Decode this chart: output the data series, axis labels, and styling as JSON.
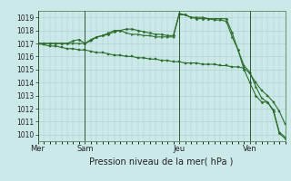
{
  "title": "Pression niveau de la mer( hPa )",
  "bg_color": "#cce9e9",
  "grid_color": "#aacccc",
  "line_color": "#2d6e2d",
  "ylim": [
    1009.5,
    1019.5
  ],
  "yticks": [
    1010,
    1011,
    1012,
    1013,
    1014,
    1015,
    1016,
    1017,
    1018,
    1019
  ],
  "day_labels": [
    "Mer",
    "Sam",
    "Jeu",
    "Ven"
  ],
  "day_positions": [
    0,
    8,
    24,
    36
  ],
  "xlim_max": 42,
  "series1_x": [
    0,
    1,
    2,
    3,
    4,
    5,
    6,
    7,
    8,
    9,
    10,
    11,
    12,
    13,
    14,
    15,
    16,
    17,
    18,
    19,
    20,
    21,
    22,
    23,
    24,
    25,
    26,
    27,
    28,
    29,
    30,
    31,
    32,
    33,
    34,
    35,
    36,
    37,
    38,
    39,
    40,
    41,
    42
  ],
  "series1_y": [
    1017.0,
    1017.0,
    1017.0,
    1017.0,
    1017.0,
    1017.0,
    1017.2,
    1017.3,
    1017.0,
    1017.3,
    1017.5,
    1017.6,
    1017.7,
    1017.9,
    1018.0,
    1018.1,
    1018.1,
    1018.0,
    1017.9,
    1017.8,
    1017.7,
    1017.7,
    1017.6,
    1017.6,
    1019.3,
    1019.2,
    1019.0,
    1018.9,
    1018.9,
    1018.9,
    1018.9,
    1018.9,
    1018.9,
    1017.8,
    1016.5,
    1015.0,
    1014.0,
    1013.0,
    1012.5,
    1012.5,
    1011.8,
    1010.1,
    1009.7
  ],
  "series2_x": [
    0,
    1,
    2,
    3,
    4,
    5,
    6,
    7,
    8,
    9,
    10,
    11,
    12,
    13,
    14,
    15,
    16,
    17,
    18,
    19,
    20,
    21,
    22,
    23,
    24,
    25,
    26,
    27,
    28,
    29,
    30,
    31,
    32,
    33,
    34,
    35,
    36,
    37,
    38,
    39,
    40,
    41,
    42
  ],
  "series2_y": [
    1017.0,
    1017.0,
    1017.0,
    1017.0,
    1017.0,
    1017.0,
    1017.0,
    1017.0,
    1017.0,
    1017.2,
    1017.5,
    1017.6,
    1017.8,
    1018.0,
    1018.0,
    1017.8,
    1017.7,
    1017.7,
    1017.6,
    1017.6,
    1017.5,
    1017.5,
    1017.5,
    1017.5,
    1019.2,
    1019.2,
    1019.0,
    1019.0,
    1019.0,
    1018.9,
    1018.8,
    1018.8,
    1018.7,
    1017.5,
    1016.5,
    1015.3,
    1014.8,
    1013.7,
    1012.8,
    1012.5,
    1011.9,
    1010.2,
    1009.8
  ],
  "series3_x": [
    0,
    1,
    2,
    3,
    4,
    5,
    6,
    7,
    8,
    9,
    10,
    11,
    12,
    13,
    14,
    15,
    16,
    17,
    18,
    19,
    20,
    21,
    22,
    23,
    24,
    25,
    26,
    27,
    28,
    29,
    30,
    31,
    32,
    33,
    34,
    35,
    36,
    37,
    38,
    39,
    40,
    41,
    42
  ],
  "series3_y": [
    1017.0,
    1016.9,
    1016.8,
    1016.8,
    1016.7,
    1016.6,
    1016.6,
    1016.5,
    1016.5,
    1016.4,
    1016.3,
    1016.3,
    1016.2,
    1016.1,
    1016.1,
    1016.0,
    1016.0,
    1015.9,
    1015.9,
    1015.8,
    1015.8,
    1015.7,
    1015.7,
    1015.6,
    1015.6,
    1015.5,
    1015.5,
    1015.5,
    1015.4,
    1015.4,
    1015.4,
    1015.3,
    1015.3,
    1015.2,
    1015.2,
    1015.1,
    1014.7,
    1014.0,
    1013.4,
    1013.0,
    1012.5,
    1011.8,
    1010.8
  ]
}
